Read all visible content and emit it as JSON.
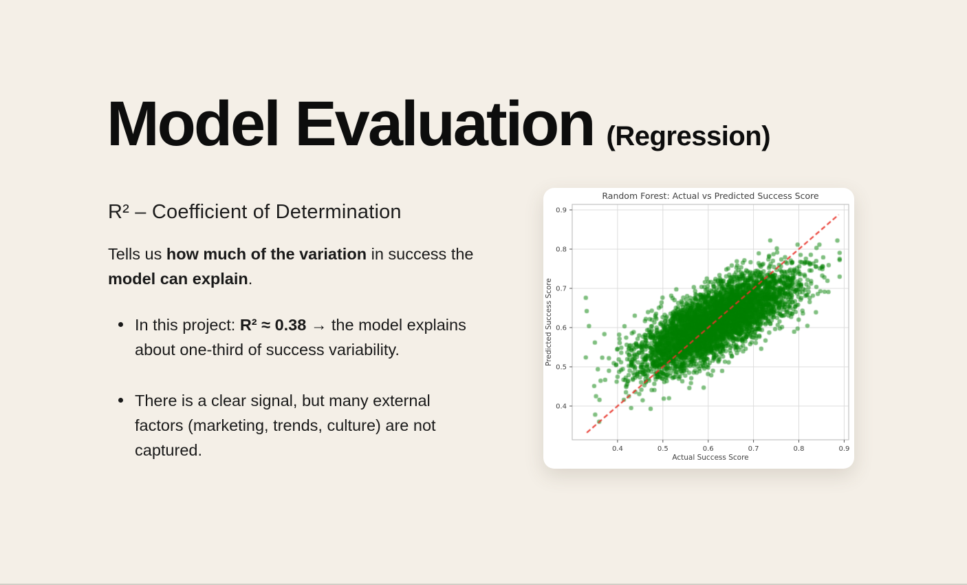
{
  "slide": {
    "title": "Model Evaluation",
    "title_suffix": "(Regression)",
    "heading": "R² – Coefficient of Determination",
    "paragraph": [
      {
        "text": "Tells us ",
        "bold": false
      },
      {
        "text": "how much of the variation",
        "bold": true
      },
      {
        "text": " in success the ",
        "bold": false
      },
      {
        "text": "model can explain",
        "bold": true
      },
      {
        "text": ".",
        "bold": false
      }
    ],
    "bullets": [
      [
        {
          "text": "In this project: ",
          "bold": false
        },
        {
          "text": "R² ≈ 0.38",
          "bold": true
        },
        {
          "text": " → the model explains about one-third of success variability.",
          "bold": false
        }
      ],
      [
        {
          "text": "There is a clear signal, but many external factors (marketing, trends, culture) are not captured.",
          "bold": false
        }
      ]
    ]
  },
  "colors": {
    "background": "#f4efe7",
    "text": "#141414",
    "card_background": "#ffffff",
    "chart_text": "#3f3f3f",
    "grid": "#dcdcdc",
    "spine": "#c2c2c2",
    "tick": "#555555",
    "scatter_green": "#008000",
    "line_red": "#e8342a"
  },
  "chart_data": {
    "type": "scatter",
    "title": "Random Forest: Actual vs Predicted Success Score",
    "xlabel": "Actual Success Score",
    "ylabel": "Predicted Success Score",
    "xlim": [
      0.3,
      0.91
    ],
    "ylim": [
      0.314,
      0.914
    ],
    "xticks": [
      0.4,
      0.5,
      0.6,
      0.7,
      0.8,
      0.9
    ],
    "yticks": [
      0.4,
      0.5,
      0.6,
      0.7,
      0.8,
      0.9
    ],
    "grid": true,
    "point_color": "#008000",
    "point_alpha": 0.5,
    "point_radius": 3.2,
    "identity_line": {
      "x1": 0.332,
      "y1": 0.332,
      "x2": 0.888,
      "y2": 0.888,
      "color": "#e8342a",
      "dash": [
        7,
        4
      ],
      "width": 2.2
    },
    "scatter_generator": {
      "seed": 42,
      "n": 5000,
      "x_mean": 0.615,
      "x_std": 0.085,
      "x_clip": [
        0.33,
        0.89
      ],
      "slope": 0.55,
      "y_mean": 0.615,
      "noise_std": 0.042,
      "y_clip": [
        0.36,
        0.83
      ]
    },
    "outlier_points": [
      [
        0.33,
        0.676
      ],
      [
        0.332,
        0.642
      ],
      [
        0.337,
        0.604
      ],
      [
        0.35,
        0.562
      ],
      [
        0.414,
        0.416
      ],
      [
        0.425,
        0.425
      ],
      [
        0.43,
        0.395
      ],
      [
        0.473,
        0.393
      ],
      [
        0.502,
        0.419
      ],
      [
        0.59,
        0.447
      ],
      [
        0.885,
        0.822
      ]
    ]
  }
}
